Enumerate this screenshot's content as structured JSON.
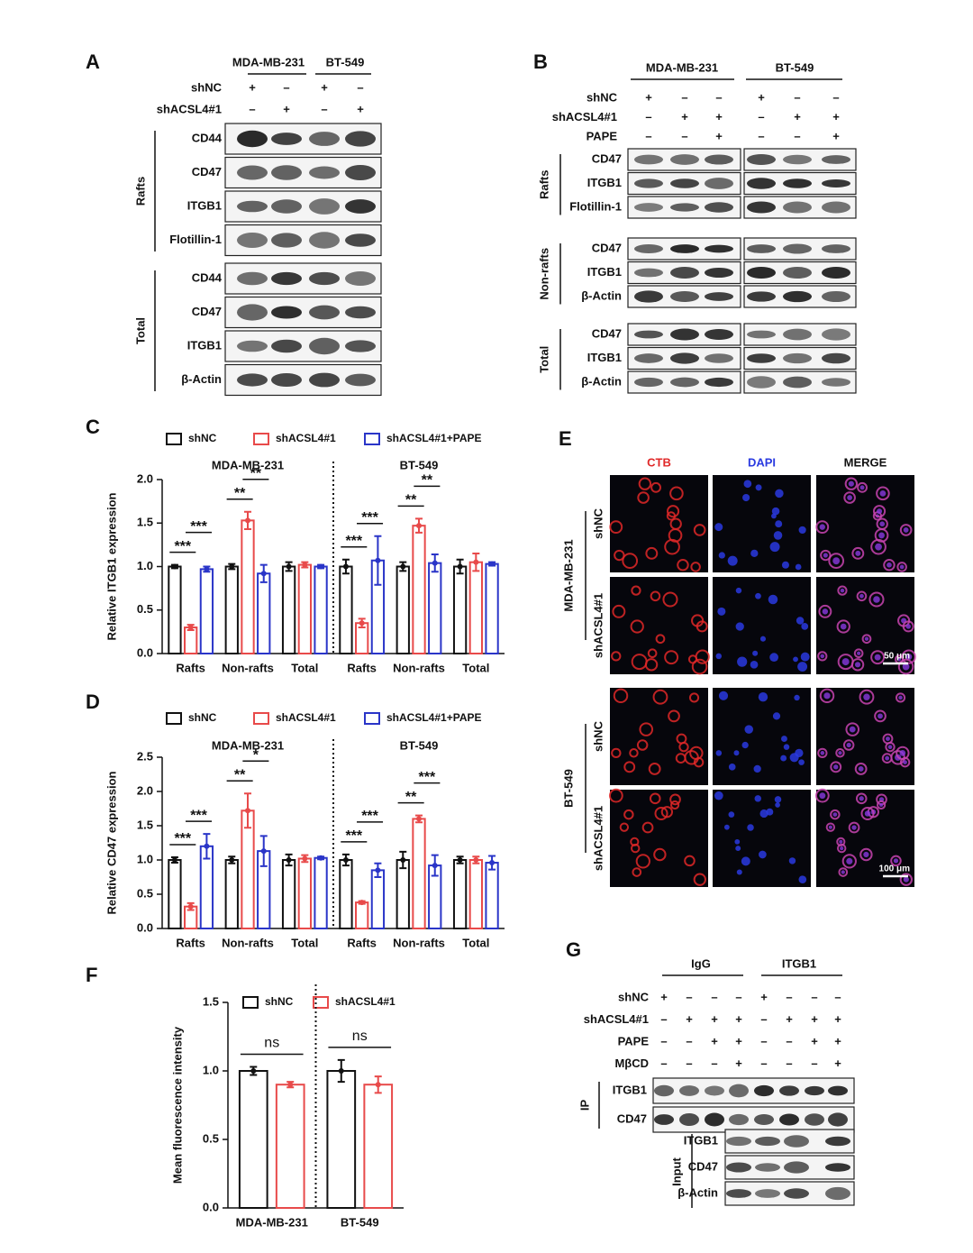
{
  "panel_a": {
    "letter": "A",
    "cell_lines": [
      "MDA-MB-231",
      "BT-549"
    ],
    "conditions": [
      {
        "label": "shNC",
        "marks": [
          "+",
          "–",
          "+",
          "–"
        ]
      },
      {
        "label": "shACSL4#1",
        "marks": [
          "–",
          "+",
          "–",
          "+"
        ]
      }
    ],
    "groups": [
      {
        "name": "Rafts",
        "blots": [
          "CD44",
          "CD47",
          "ITGB1",
          "Flotillin-1"
        ]
      },
      {
        "name": "Total",
        "blots": [
          "CD44",
          "CD47",
          "ITGB1",
          "β-Actin"
        ]
      }
    ]
  },
  "panel_b": {
    "letter": "B",
    "cell_lines": [
      "MDA-MB-231",
      "BT-549"
    ],
    "conditions": [
      {
        "label": "shNC",
        "marks": [
          "+",
          "–",
          "–",
          "+",
          "–",
          "–"
        ]
      },
      {
        "label": "shACSL4#1",
        "marks": [
          "–",
          "+",
          "+",
          "–",
          "+",
          "+"
        ]
      },
      {
        "label": "PAPE",
        "marks": [
          "–",
          "–",
          "+",
          "–",
          "–",
          "+"
        ]
      }
    ],
    "groups": [
      {
        "name": "Rafts",
        "blots": [
          "CD47",
          "ITGB1",
          "Flotillin-1"
        ]
      },
      {
        "name": "Non-rafts",
        "blots": [
          "CD47",
          "ITGB1",
          "β-Actin"
        ]
      },
      {
        "name": "Total",
        "blots": [
          "CD47",
          "ITGB1",
          "β-Actin"
        ]
      }
    ]
  },
  "panel_e": {
    "letter": "E",
    "columns": [
      "CTB",
      "DAPI",
      "MERGE"
    ],
    "cell_lines": [
      {
        "name": "MDA-MB-231",
        "rows": [
          "shNC",
          "shACSL4#1"
        ],
        "scale": "50 μm"
      },
      {
        "name": "BT-549",
        "rows": [
          "shNC",
          "shACSL4#1"
        ],
        "scale": "100 μm"
      }
    ]
  },
  "panel_g": {
    "letter": "G",
    "groups": [
      "IgG",
      "ITGB1"
    ],
    "conditions": [
      {
        "label": "shNC",
        "marks": [
          "+",
          "–",
          "–",
          "–",
          "+",
          "–",
          "–",
          "–"
        ]
      },
      {
        "label": "shACSL4#1",
        "marks": [
          "–",
          "+",
          "+",
          "+",
          "–",
          "+",
          "+",
          "+"
        ]
      },
      {
        "label": "PAPE",
        "marks": [
          "–",
          "–",
          "+",
          "+",
          "–",
          "–",
          "+",
          "+"
        ]
      },
      {
        "label": "MβCD",
        "marks": [
          "–",
          "–",
          "–",
          "+",
          "–",
          "–",
          "–",
          "+"
        ]
      }
    ],
    "ip": {
      "label": "IP",
      "blots": [
        "ITGB1",
        "CD47"
      ]
    },
    "input": {
      "label": "Input",
      "blots": [
        "ITGB1",
        "CD47",
        "β-Actin"
      ]
    }
  },
  "chart_data": [
    {
      "letter": "C",
      "type": "bar",
      "ylabel": "Relative ITGB1 expression",
      "groups": [
        "MDA-MB-231",
        "BT-549"
      ],
      "divider": true,
      "categories": [
        "Rafts",
        "Non-rafts",
        "Total",
        "Rafts",
        "Non-rafts",
        "Total"
      ],
      "series": [
        {
          "name": "shNC",
          "color": "#111111",
          "values": [
            1.0,
            1.0,
            1.0,
            1.0,
            1.0,
            1.0
          ],
          "errors": [
            0.02,
            0.03,
            0.05,
            0.08,
            0.05,
            0.08
          ]
        },
        {
          "name": "shACSL4#1",
          "color": "#e84a4a",
          "values": [
            0.3,
            1.53,
            1.02,
            0.35,
            1.47,
            1.05
          ],
          "errors": [
            0.03,
            0.1,
            0.03,
            0.05,
            0.08,
            0.1
          ]
        },
        {
          "name": "shACSL4#1+PAPE",
          "color": "#2a35c8",
          "values": [
            0.97,
            0.92,
            1.0,
            1.07,
            1.04,
            1.03
          ],
          "errors": [
            0.03,
            0.1,
            0.02,
            0.28,
            0.1,
            0.02
          ]
        }
      ],
      "ylim": [
        0,
        2.0
      ],
      "yticks": [
        {
          "value": 0,
          "label": "0.0"
        },
        {
          "value": 0.5,
          "label": "0.5"
        },
        {
          "value": 1,
          "label": "1.0"
        },
        {
          "value": 1.5,
          "label": "1.5"
        },
        {
          "value": 2,
          "label": "2.0"
        }
      ],
      "annotations": [
        {
          "category": 0,
          "from": 0,
          "to": 1,
          "text": "***"
        },
        {
          "category": 0,
          "from": 1,
          "to": 2,
          "text": "***"
        },
        {
          "category": 1,
          "from": 0,
          "to": 1,
          "text": "**"
        },
        {
          "category": 1,
          "from": 1,
          "to": 2,
          "text": "**"
        },
        {
          "category": 3,
          "from": 0,
          "to": 1,
          "text": "***"
        },
        {
          "category": 3,
          "from": 1,
          "to": 2,
          "text": "***"
        },
        {
          "category": 4,
          "from": 0,
          "to": 1,
          "text": "**"
        },
        {
          "category": 4,
          "from": 1,
          "to": 2,
          "text": "**"
        }
      ]
    },
    {
      "letter": "D",
      "type": "bar",
      "ylabel": "Relative CD47 expression",
      "groups": [
        "MDA-MB-231",
        "BT-549"
      ],
      "divider": true,
      "categories": [
        "Rafts",
        "Non-rafts",
        "Total",
        "Rafts",
        "Non-rafts",
        "Total"
      ],
      "series": [
        {
          "name": "shNC",
          "color": "#111111",
          "values": [
            1.0,
            1.0,
            1.0,
            1.0,
            1.0,
            1.0
          ],
          "errors": [
            0.04,
            0.05,
            0.08,
            0.08,
            0.12,
            0.05
          ]
        },
        {
          "name": "shACSL4#1",
          "color": "#e84a4a",
          "values": [
            0.32,
            1.72,
            1.02,
            0.38,
            1.6,
            1.0
          ],
          "errors": [
            0.05,
            0.25,
            0.05,
            0.02,
            0.05,
            0.05
          ]
        },
        {
          "name": "shACSL4#1+PAPE",
          "color": "#2a35c8",
          "values": [
            1.2,
            1.13,
            1.03,
            0.85,
            0.92,
            0.96
          ],
          "errors": [
            0.18,
            0.22,
            0.02,
            0.1,
            0.15,
            0.1
          ]
        }
      ],
      "ylim": [
        0,
        2.5
      ],
      "yticks": [
        {
          "value": 0,
          "label": "0.0"
        },
        {
          "value": 0.5,
          "label": "0.5"
        },
        {
          "value": 1,
          "label": "1.0"
        },
        {
          "value": 1.5,
          "label": "1.5"
        },
        {
          "value": 2,
          "label": "2.0"
        },
        {
          "value": 2.5,
          "label": "2.5"
        }
      ],
      "annotations": [
        {
          "category": 0,
          "from": 0,
          "to": 1,
          "text": "***"
        },
        {
          "category": 0,
          "from": 1,
          "to": 2,
          "text": "***"
        },
        {
          "category": 1,
          "from": 0,
          "to": 1,
          "text": "**"
        },
        {
          "category": 1,
          "from": 1,
          "to": 2,
          "text": "*"
        },
        {
          "category": 3,
          "from": 0,
          "to": 1,
          "text": "***"
        },
        {
          "category": 3,
          "from": 1,
          "to": 2,
          "text": "***"
        },
        {
          "category": 4,
          "from": 0,
          "to": 1,
          "text": "**"
        },
        {
          "category": 4,
          "from": 1,
          "to": 2,
          "text": "***"
        }
      ]
    },
    {
      "letter": "F",
      "type": "bar",
      "ylabel": "Mean fluorescence intensity",
      "divider": true,
      "categories": [
        "MDA-MB-231",
        "BT-549"
      ],
      "series": [
        {
          "name": "shNC",
          "color": "#111111",
          "values": [
            1.0,
            1.0
          ],
          "errors": [
            0.03,
            0.08
          ]
        },
        {
          "name": "shACSL4#1",
          "color": "#e84a4a",
          "values": [
            0.9,
            0.9
          ],
          "errors": [
            0.02,
            0.06
          ]
        }
      ],
      "ylim": [
        0,
        1.5
      ],
      "yticks": [
        {
          "value": 0,
          "label": "0.0"
        },
        {
          "value": 0.5,
          "label": "0.5"
        },
        {
          "value": 1,
          "label": "1.0"
        },
        {
          "value": 1.5,
          "label": "1.5"
        }
      ],
      "annotations": [
        {
          "category": 0,
          "from": 0,
          "to": 1,
          "text": "ns"
        },
        {
          "category": 1,
          "from": 0,
          "to": 1,
          "text": "ns"
        }
      ]
    }
  ]
}
